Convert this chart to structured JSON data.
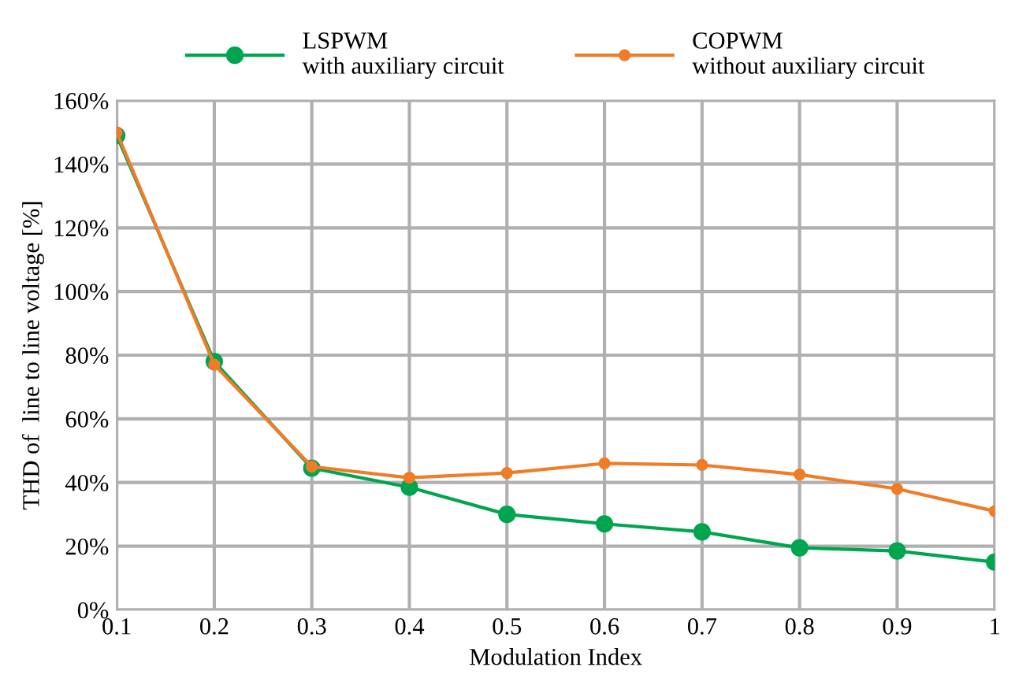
{
  "chart_data": {
    "type": "line",
    "xlabel": "Modulation Index",
    "ylabel": "THD of  line to line voltage [%]",
    "x": [
      0.1,
      0.2,
      0.3,
      0.4,
      0.5,
      0.6,
      0.7,
      0.8,
      0.9,
      1
    ],
    "series": [
      {
        "name": "LSPWM\nwith auxiliary circuit",
        "color": "#00a550",
        "values": [
          149,
          78,
          44.5,
          38.5,
          30,
          27,
          24.5,
          19.5,
          18.5,
          15
        ]
      },
      {
        "name": "COPWM\nwithout auxiliary circuit",
        "color": "#f07c28",
        "values": [
          150,
          77,
          45,
          41.5,
          43,
          46,
          45.5,
          42.5,
          38,
          31
        ]
      }
    ],
    "xlim": [
      0.1,
      1
    ],
    "xticks": [
      0.1,
      0.2,
      0.3,
      0.4,
      0.5,
      0.6,
      0.7,
      0.8,
      0.9,
      1
    ],
    "ylim": [
      0,
      160
    ],
    "yticks": [
      {
        "value": 0,
        "label": "0%"
      },
      {
        "value": 20,
        "label": "20%"
      },
      {
        "value": 40,
        "label": "40%"
      },
      {
        "value": 60,
        "label": "60%"
      },
      {
        "value": 80,
        "label": "80%"
      },
      {
        "value": 100,
        "label": "100%"
      },
      {
        "value": 120,
        "label": "120%"
      },
      {
        "value": 140,
        "label": "140%"
      },
      {
        "value": 160,
        "label": "160%"
      }
    ],
    "grid": true,
    "legend": "top",
    "marker": "circle",
    "line_style": "solid"
  }
}
